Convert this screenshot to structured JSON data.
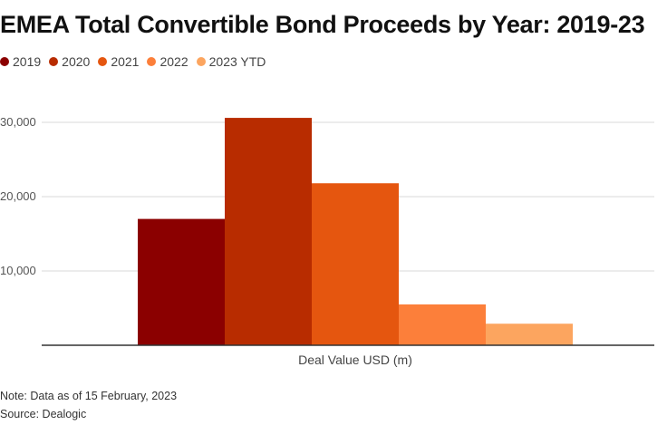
{
  "chart_data": {
    "type": "bar",
    "title": "EMEA Total Convertible Bond Proceeds by Year: 2019-23",
    "xlabel": "Deal Value USD (m)",
    "ylabel": "",
    "ylim": [
      0,
      35000
    ],
    "yticks": [
      10000,
      20000,
      30000
    ],
    "ytick_labels": [
      "10,000",
      "20,000",
      "30,000"
    ],
    "grid": true,
    "legend_position": "top-left",
    "categories": [
      "Deal Value USD (m)"
    ],
    "series": [
      {
        "name": "2019",
        "values": [
          17000
        ],
        "color": "#8b0000"
      },
      {
        "name": "2020",
        "values": [
          30600
        ],
        "color": "#b82c00"
      },
      {
        "name": "2021",
        "values": [
          21800
        ],
        "color": "#e5560f"
      },
      {
        "name": "2022",
        "values": [
          5500
        ],
        "color": "#fc7f3a"
      },
      {
        "name": "2023 YTD",
        "values": [
          2900
        ],
        "color": "#fca55f"
      }
    ]
  },
  "notes": {
    "note": "Note: Data as of 15 February, 2023",
    "source": "Source: Dealogic"
  }
}
